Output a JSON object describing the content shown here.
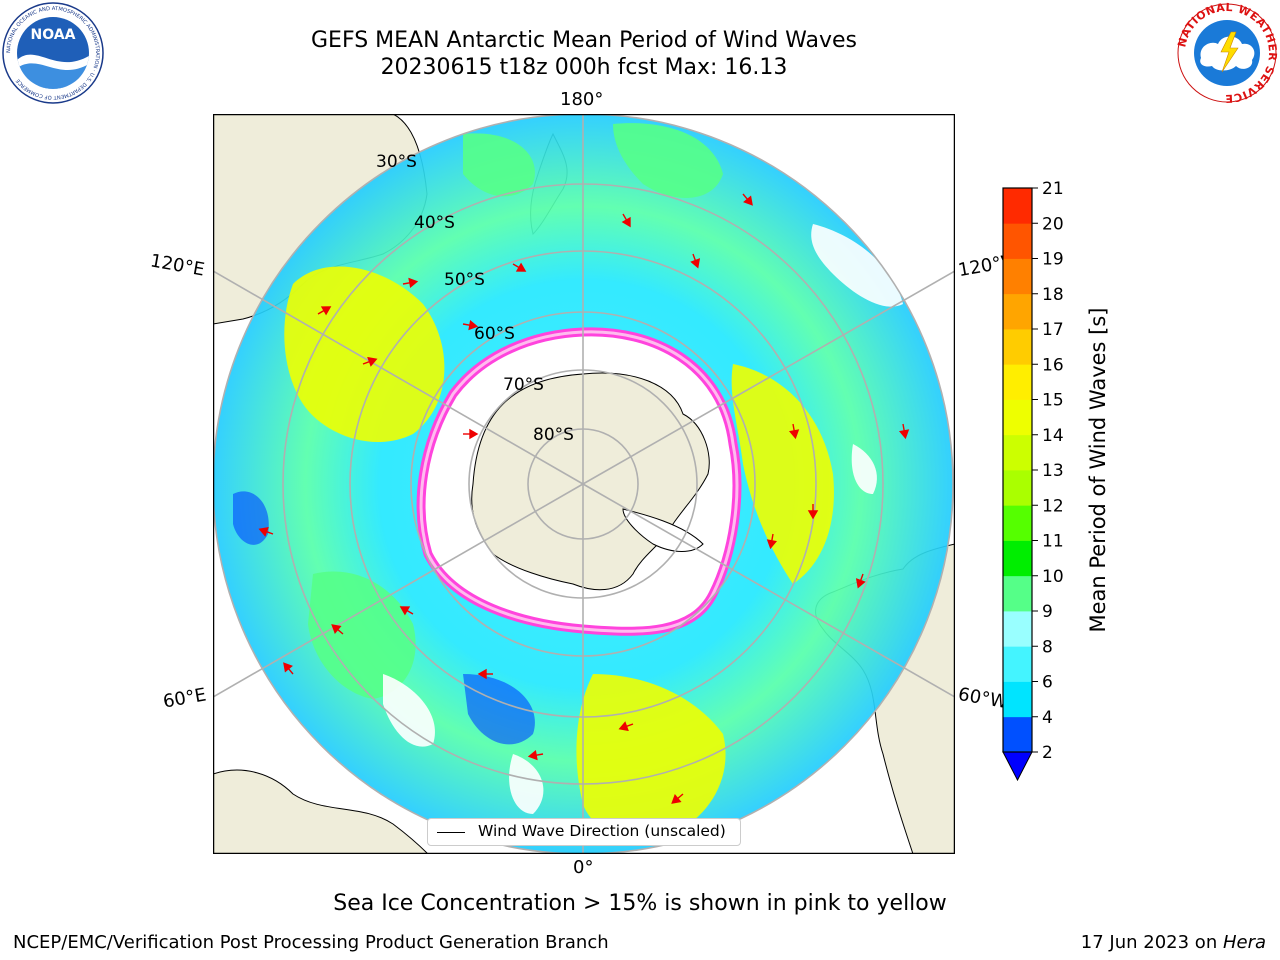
{
  "title": {
    "line1": "GEFS MEAN Antarctic Mean Period of Wind Waves",
    "line2": "20230615 t18z 000h fcst   Max: 16.13"
  },
  "logos": {
    "noaa": {
      "text": "NOAA",
      "ring_text": "NATIONAL OCEANIC AND ATMOSPHERIC ADMINISTRATION · U.S. DEPARTMENT OF COMMERCE"
    },
    "nws": {
      "ring_text": "NATIONAL WEATHER SERVICE"
    }
  },
  "map": {
    "projection": "south-polar-stereographic",
    "longitude_labels": {
      "top": "180°",
      "bottom": "0°",
      "left_upper": "120°E",
      "left_lower": "60°E",
      "right_upper": "120°W",
      "right_lower": "60°W"
    },
    "latitude_labels": [
      "30°S",
      "40°S",
      "50°S",
      "60°S",
      "70°S",
      "80°S"
    ],
    "legend": "Wind Wave Direction (unscaled)",
    "colors": {
      "land": "#efedda",
      "ice_edge": "#ff44dd",
      "arrow": "#ee0000"
    }
  },
  "colorbar": {
    "label": "Mean Period of Wind Waves [s]",
    "ticks": [
      "2",
      "4",
      "6",
      "8",
      "9",
      "10",
      "11",
      "12",
      "13",
      "14",
      "15",
      "16",
      "17",
      "18",
      "19",
      "20",
      "21"
    ],
    "colors": [
      "#0050ff",
      "#00e4ff",
      "#44f4ff",
      "#99ffff",
      "#55ff88",
      "#00ee00",
      "#55ff00",
      "#aaff00",
      "#ccff00",
      "#eeff00",
      "#ffee00",
      "#ffcc00",
      "#ffa500",
      "#ff8000",
      "#ff5500",
      "#ff2a00"
    ],
    "under_color": "#0000ff"
  },
  "note": "Sea Ice Concentration > 15% is shown in pink to yellow",
  "footer": {
    "left": "NCEP/EMC/Verification Post Processing Product Generation Branch",
    "right_prefix": "17 Jun 2023 on ",
    "right_host": "Hera"
  }
}
